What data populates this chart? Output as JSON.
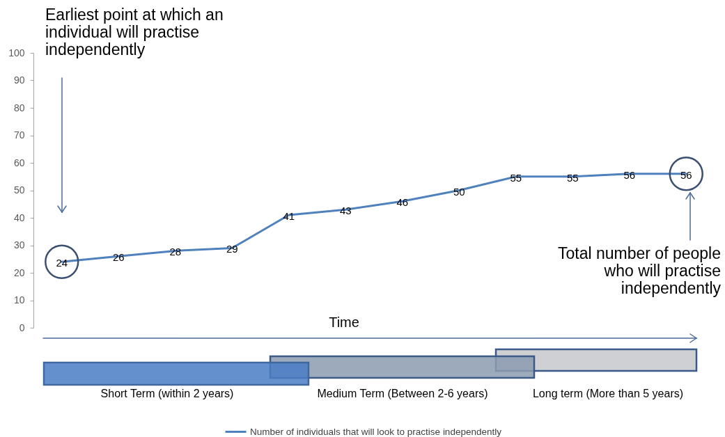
{
  "chart_data": {
    "type": "line",
    "xlabel": "Time",
    "categories": [
      null,
      null,
      null,
      null,
      null,
      null,
      null,
      null,
      null,
      null,
      null,
      null
    ],
    "series": [
      {
        "name": "Number of individuals that will look to practise independently",
        "color": "#4f81bd",
        "values": [
          24,
          26,
          28,
          29,
          41,
          43,
          46,
          50,
          55,
          55,
          56,
          56
        ]
      }
    ],
    "ylim": [
      0,
      100
    ],
    "yticks": [
      0,
      10,
      20,
      30,
      40,
      50,
      60,
      70,
      80,
      90,
      100
    ],
    "grid": false,
    "legend": "bottom",
    "tick_labels": "y",
    "data_labels": true,
    "marker": "none",
    "line_style": "solid",
    "annotations": [
      "Earliest point at which an individual will practise independently",
      "Total number of people who will practise independently",
      "Short Term (within 2 years)",
      "Medium Term (Between 2-6 years)",
      "Long term (More than 5 years)"
    ]
  }
}
